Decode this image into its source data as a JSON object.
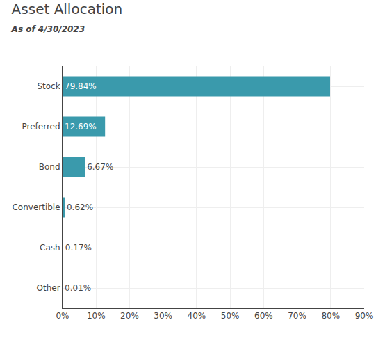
{
  "chart_data": {
    "type": "bar",
    "orientation": "horizontal",
    "title": "Asset Allocation",
    "subtitle": "As of 4/30/2023",
    "categories": [
      "Stock",
      "Preferred",
      "Bond",
      "Convertible",
      "Cash",
      "Other"
    ],
    "values": [
      79.84,
      12.69,
      6.67,
      0.62,
      0.17,
      0.01
    ],
    "value_labels": [
      "79.84%",
      "12.69%",
      "6.67%",
      "0.62%",
      "0.17%",
      "0.01%"
    ],
    "data_labels": true,
    "color": "#3a9aac",
    "xlim": [
      0,
      90
    ],
    "xticks": [
      {
        "value": 0,
        "label": "0%"
      },
      {
        "value": 10,
        "label": "10%"
      },
      {
        "value": 20,
        "label": "20%"
      },
      {
        "value": 30,
        "label": "30%"
      },
      {
        "value": 40,
        "label": "40%"
      },
      {
        "value": 50,
        "label": "50%"
      },
      {
        "value": 60,
        "label": "60%"
      },
      {
        "value": 70,
        "label": "70%"
      },
      {
        "value": 80,
        "label": "80%"
      },
      {
        "value": 90,
        "label": "90%"
      }
    ],
    "grid": true
  }
}
